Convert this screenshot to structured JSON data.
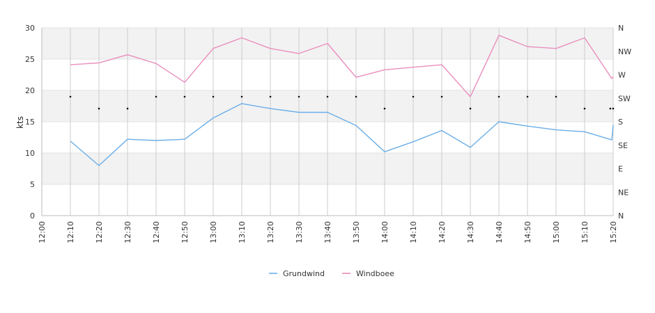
{
  "chart_data": {
    "type": "line",
    "xlabel": "",
    "ylabel": "kts",
    "ylim": [
      0,
      30
    ],
    "yticks": [
      0,
      5,
      10,
      15,
      20,
      25,
      30
    ],
    "y2ticks": [
      "N",
      "NE",
      "E",
      "SE",
      "S",
      "SW",
      "W",
      "NW",
      "N"
    ],
    "grid": true,
    "legend_position": "bottom",
    "x": [
      "12:00",
      "12:10",
      "12:20",
      "12:30",
      "12:40",
      "12:50",
      "13:00",
      "13:10",
      "13:20",
      "13:30",
      "13:40",
      "13:50",
      "14:00",
      "14:10",
      "14:20",
      "14:30",
      "14:40",
      "14:50",
      "15:00",
      "15:10",
      "15:20"
    ],
    "series": [
      {
        "name": "Grundwind",
        "color": "#6aaee8",
        "points": [
          [
            10,
            11.9
          ],
          [
            20,
            8.0
          ],
          [
            30,
            12.2
          ],
          [
            40,
            12.0
          ],
          [
            50,
            12.2
          ],
          [
            60,
            15.6
          ],
          [
            70,
            17.9
          ],
          [
            80,
            17.1
          ],
          [
            90,
            16.5
          ],
          [
            100,
            16.5
          ],
          [
            110,
            14.4
          ],
          [
            120,
            10.2
          ],
          [
            130,
            11.8
          ],
          [
            140,
            13.6
          ],
          [
            150,
            10.9
          ],
          [
            160,
            15.0
          ],
          [
            170,
            14.3
          ],
          [
            180,
            13.7
          ],
          [
            190,
            13.4
          ],
          [
            199.5,
            12.1
          ],
          [
            200,
            14.5
          ]
        ]
      },
      {
        "name": "Windboee",
        "color": "#ea8ebd",
        "points": [
          [
            10,
            24.1
          ],
          [
            20,
            24.4
          ],
          [
            30,
            25.7
          ],
          [
            40,
            24.3
          ],
          [
            50,
            21.3
          ],
          [
            60,
            26.7
          ],
          [
            70,
            28.4
          ],
          [
            80,
            26.7
          ],
          [
            90,
            25.9
          ],
          [
            100,
            27.5
          ],
          [
            110,
            22.1
          ],
          [
            120,
            23.3
          ],
          [
            130,
            23.7
          ],
          [
            140,
            24.1
          ],
          [
            150,
            19.0
          ],
          [
            160,
            28.8
          ],
          [
            170,
            27.0
          ],
          [
            180,
            26.7
          ],
          [
            190,
            28.4
          ],
          [
            199.5,
            21.9
          ],
          [
            200,
            22.2
          ]
        ]
      },
      {
        "name": "",
        "kind": "direction",
        "color": "#111111",
        "points": [
          [
            10,
            19.0
          ],
          [
            20,
            17.1
          ],
          [
            30,
            17.1
          ],
          [
            40,
            19.0
          ],
          [
            50,
            19.0
          ],
          [
            60,
            19.0
          ],
          [
            70,
            19.0
          ],
          [
            80,
            19.0
          ],
          [
            90,
            19.0
          ],
          [
            100,
            19.0
          ],
          [
            110,
            19.0
          ],
          [
            120,
            17.1
          ],
          [
            130,
            19.0
          ],
          [
            140,
            19.0
          ],
          [
            150,
            17.1
          ],
          [
            160,
            19.0
          ],
          [
            170,
            19.0
          ],
          [
            180,
            19.0
          ],
          [
            190,
            17.1
          ],
          [
            199,
            17.1
          ],
          [
            200,
            17.1
          ]
        ]
      }
    ]
  }
}
